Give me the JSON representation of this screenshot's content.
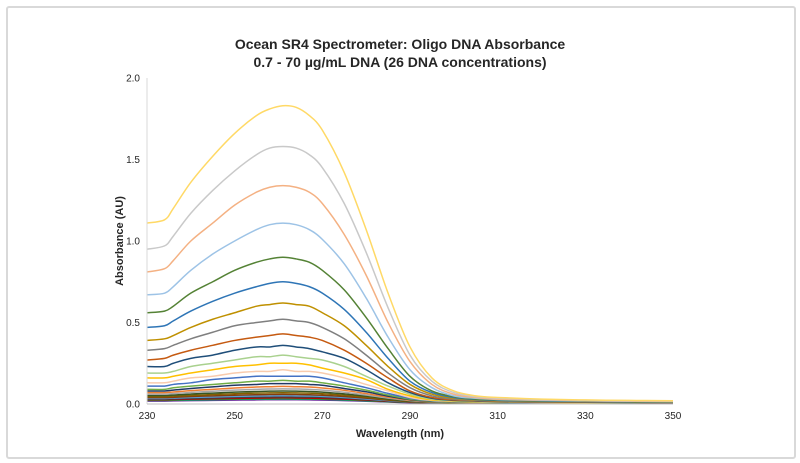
{
  "chart_data": {
    "type": "line",
    "title": "Ocean SR4 Spectrometer: Oligo DNA Absorbance",
    "subtitle": "0.7 - 70 µg/mL DNA (26 DNA concentrations)",
    "xlabel": "Wavelength (nm)",
    "ylabel": "Absorbance (AU)",
    "xlim": [
      230,
      350
    ],
    "ylim": [
      0,
      2.0
    ],
    "x_ticks": [
      "230",
      "250",
      "270",
      "290",
      "310",
      "330",
      "350"
    ],
    "y_ticks": [
      "0.0",
      "0.5",
      "1.0",
      "1.5",
      "2.0"
    ],
    "grid": false,
    "legend": "none",
    "x": [
      230,
      234,
      236,
      240,
      245,
      250,
      255,
      258,
      261,
      264,
      267,
      270,
      275,
      280,
      285,
      290,
      295,
      300,
      305,
      310,
      320,
      330,
      340,
      350
    ],
    "series": [
      {
        "color": "#FFD966",
        "values": [
          1.11,
          1.13,
          1.2,
          1.36,
          1.52,
          1.66,
          1.77,
          1.81,
          1.83,
          1.82,
          1.77,
          1.68,
          1.42,
          1.07,
          0.68,
          0.35,
          0.16,
          0.08,
          0.05,
          0.04,
          0.03,
          0.025,
          0.022,
          0.02
        ]
      },
      {
        "color": "#C9C9C9",
        "values": [
          0.95,
          0.97,
          1.03,
          1.17,
          1.31,
          1.43,
          1.53,
          1.57,
          1.58,
          1.57,
          1.53,
          1.45,
          1.23,
          0.93,
          0.59,
          0.3,
          0.14,
          0.07,
          0.045,
          0.035,
          0.028,
          0.023,
          0.02,
          0.018
        ]
      },
      {
        "color": "#F4B183",
        "values": [
          0.81,
          0.83,
          0.88,
          1.0,
          1.11,
          1.22,
          1.3,
          1.33,
          1.34,
          1.33,
          1.3,
          1.23,
          1.04,
          0.79,
          0.5,
          0.26,
          0.12,
          0.06,
          0.04,
          0.03,
          0.025,
          0.021,
          0.018,
          0.016
        ]
      },
      {
        "color": "#9DC3E6",
        "values": [
          0.67,
          0.68,
          0.72,
          0.82,
          0.92,
          1.0,
          1.07,
          1.1,
          1.11,
          1.1,
          1.07,
          1.01,
          0.86,
          0.65,
          0.41,
          0.21,
          0.1,
          0.05,
          0.035,
          0.028,
          0.022,
          0.019,
          0.017,
          0.015
        ]
      },
      {
        "color": "#548235",
        "values": [
          0.56,
          0.57,
          0.6,
          0.68,
          0.75,
          0.82,
          0.87,
          0.89,
          0.9,
          0.89,
          0.87,
          0.82,
          0.7,
          0.53,
          0.34,
          0.17,
          0.08,
          0.045,
          0.03,
          0.025,
          0.02,
          0.017,
          0.015,
          0.013
        ]
      },
      {
        "color": "#2E75B6",
        "values": [
          0.47,
          0.48,
          0.51,
          0.57,
          0.63,
          0.68,
          0.72,
          0.74,
          0.75,
          0.74,
          0.72,
          0.68,
          0.58,
          0.44,
          0.28,
          0.14,
          0.07,
          0.04,
          0.028,
          0.022,
          0.018,
          0.015,
          0.013,
          0.012
        ]
      },
      {
        "color": "#BF9000",
        "values": [
          0.39,
          0.4,
          0.42,
          0.47,
          0.52,
          0.56,
          0.6,
          0.61,
          0.62,
          0.61,
          0.6,
          0.56,
          0.48,
          0.36,
          0.23,
          0.12,
          0.06,
          0.035,
          0.025,
          0.02,
          0.016,
          0.014,
          0.012,
          0.011
        ]
      },
      {
        "color": "#7F7F7F",
        "values": [
          0.33,
          0.34,
          0.36,
          0.4,
          0.44,
          0.48,
          0.5,
          0.51,
          0.52,
          0.51,
          0.5,
          0.47,
          0.4,
          0.3,
          0.19,
          0.1,
          0.05,
          0.03,
          0.022,
          0.018,
          0.015,
          0.013,
          0.011,
          0.01
        ]
      },
      {
        "color": "#C55A11",
        "values": [
          0.27,
          0.28,
          0.3,
          0.33,
          0.36,
          0.39,
          0.41,
          0.42,
          0.43,
          0.42,
          0.41,
          0.39,
          0.33,
          0.25,
          0.16,
          0.08,
          0.04,
          0.025,
          0.02,
          0.016,
          0.013,
          0.012,
          0.01,
          0.009
        ]
      },
      {
        "color": "#1F4E79",
        "values": [
          0.23,
          0.23,
          0.25,
          0.28,
          0.3,
          0.33,
          0.35,
          0.35,
          0.36,
          0.35,
          0.34,
          0.32,
          0.28,
          0.21,
          0.13,
          0.07,
          0.035,
          0.022,
          0.018,
          0.014,
          0.012,
          0.011,
          0.009,
          0.008
        ]
      },
      {
        "color": "#A9D18E",
        "values": [
          0.19,
          0.19,
          0.2,
          0.23,
          0.25,
          0.27,
          0.29,
          0.29,
          0.3,
          0.29,
          0.28,
          0.27,
          0.23,
          0.17,
          0.11,
          0.06,
          0.03,
          0.02,
          0.016,
          0.013,
          0.011,
          0.01,
          0.008,
          0.007
        ]
      },
      {
        "color": "#FFC000",
        "values": [
          0.16,
          0.16,
          0.17,
          0.19,
          0.21,
          0.23,
          0.24,
          0.25,
          0.25,
          0.25,
          0.24,
          0.22,
          0.19,
          0.15,
          0.09,
          0.05,
          0.025,
          0.018,
          0.014,
          0.012,
          0.01,
          0.009,
          0.008,
          0.007
        ]
      },
      {
        "color": "#F8CBAD",
        "values": [
          0.13,
          0.13,
          0.14,
          0.16,
          0.17,
          0.19,
          0.2,
          0.2,
          0.21,
          0.2,
          0.2,
          0.19,
          0.16,
          0.12,
          0.08,
          0.04,
          0.022,
          0.016,
          0.013,
          0.011,
          0.009,
          0.008,
          0.007,
          0.006
        ]
      },
      {
        "color": "#4472C4",
        "values": [
          0.11,
          0.11,
          0.12,
          0.13,
          0.15,
          0.16,
          0.17,
          0.17,
          0.17,
          0.17,
          0.17,
          0.16,
          0.13,
          0.1,
          0.065,
          0.035,
          0.02,
          0.015,
          0.012,
          0.01,
          0.008,
          0.007,
          0.006,
          0.006
        ]
      },
      {
        "color": "#70AD47",
        "values": [
          0.09,
          0.09,
          0.1,
          0.11,
          0.12,
          0.13,
          0.14,
          0.14,
          0.145,
          0.14,
          0.14,
          0.13,
          0.11,
          0.085,
          0.055,
          0.03,
          0.018,
          0.013,
          0.011,
          0.009,
          0.008,
          0.007,
          0.006,
          0.005
        ]
      },
      {
        "color": "#203864",
        "values": [
          0.08,
          0.08,
          0.085,
          0.095,
          0.105,
          0.115,
          0.12,
          0.125,
          0.125,
          0.125,
          0.12,
          0.115,
          0.095,
          0.075,
          0.048,
          0.027,
          0.016,
          0.012,
          0.01,
          0.009,
          0.007,
          0.006,
          0.006,
          0.005
        ]
      },
      {
        "color": "#ED7D31",
        "values": [
          0.07,
          0.07,
          0.074,
          0.082,
          0.09,
          0.098,
          0.104,
          0.106,
          0.108,
          0.106,
          0.104,
          0.098,
          0.084,
          0.064,
          0.042,
          0.024,
          0.015,
          0.011,
          0.009,
          0.008,
          0.007,
          0.006,
          0.005,
          0.005
        ]
      },
      {
        "color": "#A5A5A5",
        "values": [
          0.06,
          0.06,
          0.064,
          0.071,
          0.078,
          0.085,
          0.09,
          0.092,
          0.093,
          0.092,
          0.09,
          0.085,
          0.072,
          0.055,
          0.036,
          0.021,
          0.013,
          0.01,
          0.008,
          0.007,
          0.006,
          0.005,
          0.005,
          0.004
        ]
      },
      {
        "color": "#375623",
        "values": [
          0.052,
          0.052,
          0.055,
          0.061,
          0.067,
          0.073,
          0.077,
          0.079,
          0.08,
          0.079,
          0.077,
          0.073,
          0.062,
          0.048,
          0.031,
          0.018,
          0.012,
          0.009,
          0.008,
          0.007,
          0.006,
          0.005,
          0.004,
          0.004
        ]
      },
      {
        "color": "#806000",
        "values": [
          0.045,
          0.045,
          0.048,
          0.053,
          0.058,
          0.063,
          0.067,
          0.068,
          0.069,
          0.068,
          0.067,
          0.063,
          0.054,
          0.042,
          0.027,
          0.016,
          0.011,
          0.008,
          0.007,
          0.006,
          0.005,
          0.005,
          0.004,
          0.004
        ]
      },
      {
        "color": "#843C0C",
        "values": [
          0.039,
          0.039,
          0.041,
          0.046,
          0.05,
          0.054,
          0.057,
          0.058,
          0.059,
          0.058,
          0.057,
          0.054,
          0.046,
          0.036,
          0.024,
          0.014,
          0.01,
          0.008,
          0.006,
          0.006,
          0.005,
          0.004,
          0.004,
          0.003
        ]
      },
      {
        "color": "#5B9BD5",
        "values": [
          0.034,
          0.034,
          0.036,
          0.04,
          0.043,
          0.047,
          0.049,
          0.05,
          0.051,
          0.05,
          0.049,
          0.047,
          0.04,
          0.031,
          0.021,
          0.013,
          0.009,
          0.007,
          0.006,
          0.005,
          0.004,
          0.004,
          0.003,
          0.003
        ]
      },
      {
        "color": "#404040",
        "values": [
          0.03,
          0.03,
          0.031,
          0.034,
          0.037,
          0.04,
          0.042,
          0.043,
          0.044,
          0.043,
          0.042,
          0.04,
          0.035,
          0.027,
          0.018,
          0.012,
          0.008,
          0.006,
          0.005,
          0.005,
          0.004,
          0.004,
          0.003,
          0.003
        ]
      },
      {
        "color": "#C00000",
        "values": [
          0.026,
          0.026,
          0.027,
          0.03,
          0.032,
          0.034,
          0.036,
          0.037,
          0.038,
          0.037,
          0.036,
          0.034,
          0.03,
          0.024,
          0.016,
          0.011,
          0.007,
          0.006,
          0.005,
          0.004,
          0.004,
          0.003,
          0.003,
          0.003
        ]
      },
      {
        "color": "#00B050",
        "values": [
          0.022,
          0.022,
          0.023,
          0.025,
          0.027,
          0.029,
          0.031,
          0.031,
          0.032,
          0.031,
          0.031,
          0.029,
          0.025,
          0.02,
          0.014,
          0.01,
          0.007,
          0.005,
          0.004,
          0.004,
          0.003,
          0.003,
          0.003,
          0.002
        ]
      },
      {
        "color": "#7030A0",
        "values": [
          0.018,
          0.018,
          0.019,
          0.021,
          0.022,
          0.024,
          0.025,
          0.026,
          0.026,
          0.026,
          0.025,
          0.024,
          0.021,
          0.017,
          0.012,
          0.008,
          0.006,
          0.005,
          0.004,
          0.003,
          0.003,
          0.003,
          0.002,
          0.002
        ]
      }
    ]
  }
}
